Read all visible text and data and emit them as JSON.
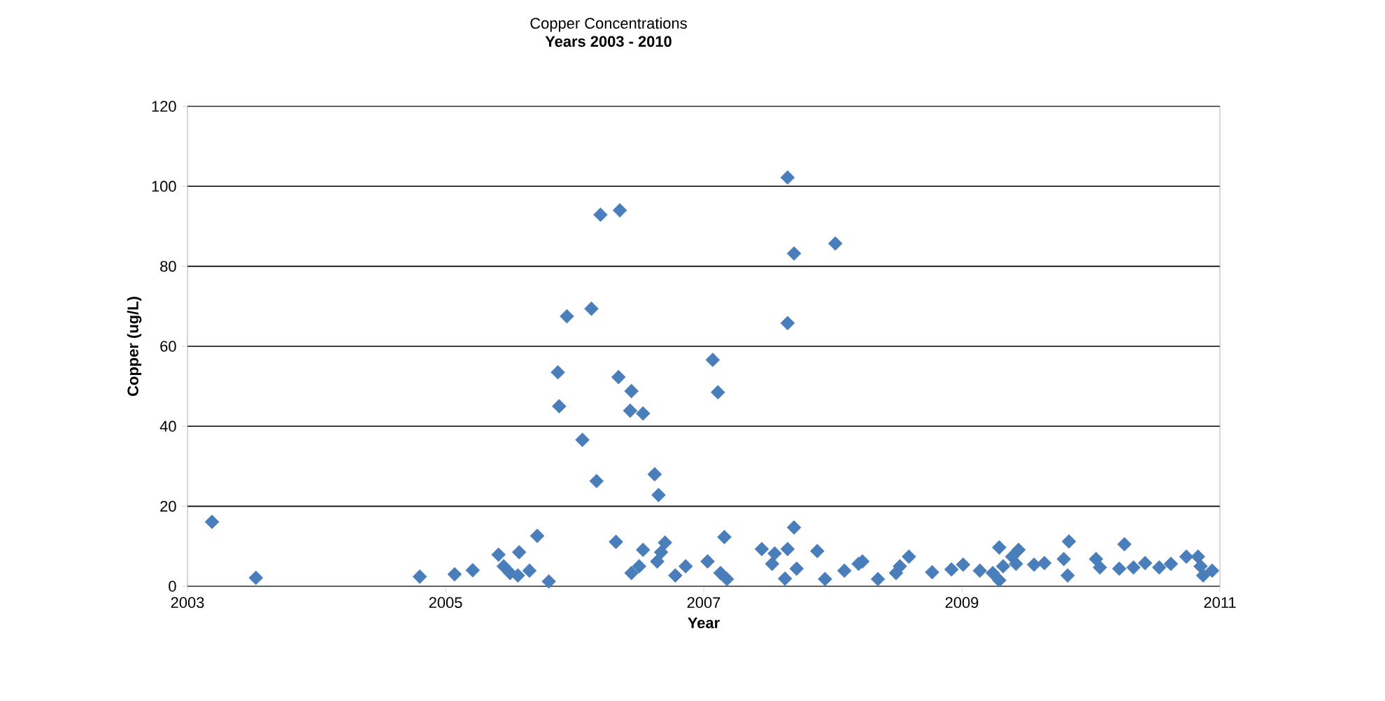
{
  "chart_data": {
    "type": "scatter",
    "title": "Copper Concentrations",
    "subtitle": "Years 2003 - 2010",
    "xlabel": "Year",
    "ylabel": "Copper  (ug/L)",
    "xlim": [
      2003,
      2011
    ],
    "xticks": [
      2003,
      2005,
      2007,
      2009,
      2011
    ],
    "ylim": [
      0,
      120
    ],
    "yticks": [
      0,
      20,
      40,
      60,
      80,
      100,
      120
    ],
    "grid": "y",
    "marker": "diamond",
    "series": [
      {
        "color": "#4a7ebb",
        "x": [
          2003.19,
          2003.53,
          2004.8,
          2005.07,
          2005.21,
          2005.41,
          2005.57,
          2005.45,
          2005.5,
          2005.56,
          2005.65,
          2005.71,
          2005.8,
          2006.2,
          2006.35,
          2007.65,
          2007.7,
          2008.02,
          2005.94,
          2006.13,
          2007.65,
          2005.87,
          2007.07,
          2006.34,
          2006.44,
          2005.88,
          2007.11,
          2006.43,
          2006.53,
          2006.06,
          2006.17,
          2006.62,
          2006.65,
          2006.32,
          2006.53,
          2006.7,
          2006.5,
          2006.44,
          2006.64,
          2006.67,
          2006.78,
          2006.86,
          2007.16,
          2007.03,
          2007.13,
          2007.18,
          2007.7,
          2007.45,
          2007.53,
          2007.65,
          2007.55,
          2007.63,
          2007.72,
          2007.88,
          2007.94,
          2008.09,
          2008.2,
          2008.23,
          2008.35,
          2008.49,
          2008.52,
          2008.59,
          2008.77,
          2008.92,
          2009.01,
          2009.14,
          2009.29,
          2009.24,
          2009.29,
          2009.32,
          2009.39,
          2009.44,
          2009.42,
          2009.56,
          2009.64,
          2009.83,
          2009.79,
          2009.82,
          2010.04,
          2010.07,
          2010.26,
          2010.22,
          2010.33,
          2010.42,
          2010.53,
          2010.62,
          2010.74,
          2010.83,
          2010.87,
          2010.94,
          2010.85
        ],
        "values": [
          16.1,
          2.1,
          2.4,
          3.0,
          4.0,
          7.9,
          8.5,
          5.0,
          3.3,
          2.7,
          3.9,
          12.6,
          1.2,
          92.9,
          94.0,
          102.2,
          83.2,
          85.7,
          67.5,
          69.4,
          65.8,
          53.5,
          56.6,
          52.3,
          48.8,
          45.0,
          48.5,
          43.9,
          43.2,
          36.6,
          26.3,
          28.0,
          22.8,
          11.1,
          9.1,
          10.9,
          5.0,
          3.3,
          6.2,
          8.5,
          2.7,
          5.0,
          12.3,
          6.2,
          3.3,
          1.8,
          14.7,
          9.3,
          5.6,
          9.3,
          8.2,
          1.9,
          4.4,
          8.8,
          1.8,
          3.9,
          5.6,
          6.2,
          1.8,
          3.3,
          5.0,
          7.4,
          3.5,
          4.2,
          5.4,
          3.9,
          9.7,
          3.3,
          1.5,
          5.0,
          7.4,
          9.1,
          5.6,
          5.4,
          5.8,
          11.2,
          6.8,
          2.7,
          6.8,
          4.7,
          10.5,
          4.4,
          4.7,
          5.8,
          4.7,
          5.6,
          7.4,
          7.4,
          2.7,
          3.9,
          5.0
        ]
      }
    ]
  }
}
